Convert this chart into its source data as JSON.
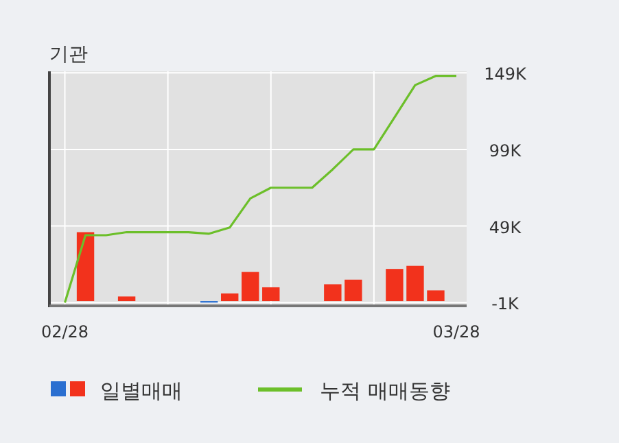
{
  "chart_data": {
    "type": "bar",
    "title": "기관",
    "categories": [
      "02/28",
      null,
      null,
      null,
      null,
      null,
      null,
      null,
      null,
      null,
      null,
      null,
      null,
      null,
      null,
      null,
      null,
      null,
      null,
      "03/28"
    ],
    "series": [
      {
        "name": "일별매매",
        "colors": [
          null,
          "#f2321c",
          null,
          "#f2321c",
          null,
          null,
          null,
          "#2a6fd0",
          "#f2321c",
          "#f2321c",
          "#f2321c",
          null,
          null,
          "#f2321c",
          "#f2321c",
          null,
          "#f2321c",
          "#f2321c",
          "#f2321c",
          null
        ],
        "values": [
          null,
          45,
          null,
          3,
          null,
          null,
          null,
          -1,
          5,
          19,
          9,
          null,
          null,
          11,
          14,
          null,
          21,
          23,
          7,
          null
        ]
      },
      {
        "name": "누적 매매동향",
        "type": "line",
        "color": "#6cbf2a",
        "values": [
          -1,
          43,
          43,
          45,
          45,
          45,
          45,
          44,
          48,
          67,
          74,
          74,
          74,
          86,
          99,
          99,
          120,
          141,
          147,
          147
        ]
      }
    ],
    "ylim": [
      -4,
      150
    ],
    "yticks": [
      {
        "value": -1,
        "label": "-1K"
      },
      {
        "value": 49,
        "label": "49K"
      },
      {
        "value": 99,
        "label": "99K"
      },
      {
        "value": 149,
        "label": "149K"
      }
    ],
    "grid": true,
    "legend": "bottom",
    "marker": "none"
  }
}
